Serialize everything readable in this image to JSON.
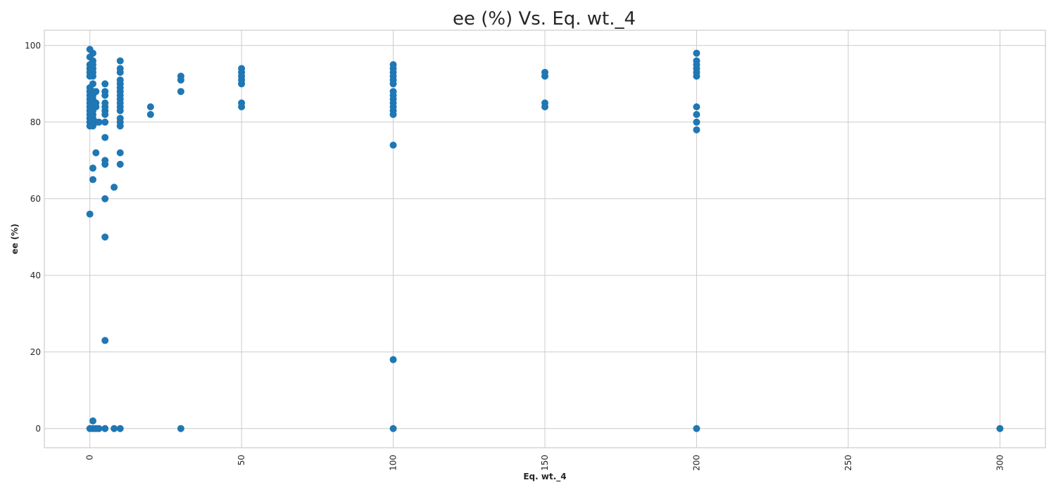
{
  "chart_data": {
    "type": "scatter",
    "title": "ee (%) Vs. Eq. wt._4",
    "xlabel": "Eq. wt._4",
    "ylabel": "ee (%)",
    "xlim": [
      -15,
      315
    ],
    "ylim": [
      -5,
      104
    ],
    "xticks": [
      0,
      50,
      100,
      150,
      200,
      250,
      300
    ],
    "yticks": [
      0,
      20,
      40,
      60,
      80,
      100
    ],
    "xtick_rotation": 90,
    "grid": true,
    "marker_color": "#1f77b4",
    "points": [
      [
        0,
        99
      ],
      [
        0,
        97
      ],
      [
        0,
        95
      ],
      [
        0,
        94
      ],
      [
        0,
        93
      ],
      [
        0,
        92
      ],
      [
        0,
        89
      ],
      [
        0,
        88
      ],
      [
        0,
        87
      ],
      [
        0,
        86
      ],
      [
        0,
        85
      ],
      [
        0,
        84
      ],
      [
        0,
        83
      ],
      [
        0,
        82
      ],
      [
        0,
        81
      ],
      [
        0,
        80
      ],
      [
        0,
        79
      ],
      [
        0,
        56
      ],
      [
        0,
        0
      ],
      [
        1,
        98
      ],
      [
        1,
        96
      ],
      [
        1,
        95
      ],
      [
        1,
        94
      ],
      [
        1,
        93
      ],
      [
        1,
        92
      ],
      [
        1,
        90
      ],
      [
        1,
        88
      ],
      [
        1,
        87
      ],
      [
        1,
        86
      ],
      [
        1,
        85
      ],
      [
        1,
        84
      ],
      [
        1,
        83
      ],
      [
        1,
        82
      ],
      [
        1,
        81
      ],
      [
        1,
        80
      ],
      [
        1,
        79
      ],
      [
        1,
        68
      ],
      [
        1,
        65
      ],
      [
        1,
        2
      ],
      [
        1,
        0
      ],
      [
        2,
        88
      ],
      [
        2,
        85
      ],
      [
        2,
        84
      ],
      [
        2,
        80
      ],
      [
        2,
        72
      ],
      [
        2,
        0
      ],
      [
        3,
        80
      ],
      [
        3,
        0
      ],
      [
        5,
        90
      ],
      [
        5,
        88
      ],
      [
        5,
        87
      ],
      [
        5,
        85
      ],
      [
        5,
        84
      ],
      [
        5,
        83
      ],
      [
        5,
        82
      ],
      [
        5,
        80
      ],
      [
        5,
        76
      ],
      [
        5,
        70
      ],
      [
        5,
        69
      ],
      [
        5,
        60
      ],
      [
        5,
        50
      ],
      [
        5,
        23
      ],
      [
        5,
        0
      ],
      [
        8,
        63
      ],
      [
        8,
        0
      ],
      [
        10,
        96
      ],
      [
        10,
        94
      ],
      [
        10,
        93
      ],
      [
        10,
        91
      ],
      [
        10,
        90
      ],
      [
        10,
        89
      ],
      [
        10,
        88
      ],
      [
        10,
        87
      ],
      [
        10,
        86
      ],
      [
        10,
        85
      ],
      [
        10,
        84
      ],
      [
        10,
        83
      ],
      [
        10,
        81
      ],
      [
        10,
        80
      ],
      [
        10,
        79
      ],
      [
        10,
        72
      ],
      [
        10,
        69
      ],
      [
        10,
        0
      ],
      [
        20,
        84
      ],
      [
        20,
        82
      ],
      [
        30,
        92
      ],
      [
        30,
        91
      ],
      [
        30,
        88
      ],
      [
        30,
        0
      ],
      [
        50,
        94
      ],
      [
        50,
        93
      ],
      [
        50,
        92
      ],
      [
        50,
        91
      ],
      [
        50,
        90
      ],
      [
        50,
        85
      ],
      [
        50,
        84
      ],
      [
        100,
        95
      ],
      [
        100,
        94
      ],
      [
        100,
        93
      ],
      [
        100,
        92
      ],
      [
        100,
        91
      ],
      [
        100,
        90
      ],
      [
        100,
        88
      ],
      [
        100,
        87
      ],
      [
        100,
        86
      ],
      [
        100,
        85
      ],
      [
        100,
        84
      ],
      [
        100,
        83
      ],
      [
        100,
        82
      ],
      [
        100,
        74
      ],
      [
        100,
        18
      ],
      [
        100,
        0
      ],
      [
        150,
        93
      ],
      [
        150,
        92
      ],
      [
        150,
        85
      ],
      [
        150,
        84
      ],
      [
        200,
        98
      ],
      [
        200,
        96
      ],
      [
        200,
        95
      ],
      [
        200,
        94
      ],
      [
        200,
        93
      ],
      [
        200,
        92
      ],
      [
        200,
        84
      ],
      [
        200,
        82
      ],
      [
        200,
        80
      ],
      [
        200,
        78
      ],
      [
        200,
        0
      ],
      [
        300,
        0
      ]
    ]
  }
}
